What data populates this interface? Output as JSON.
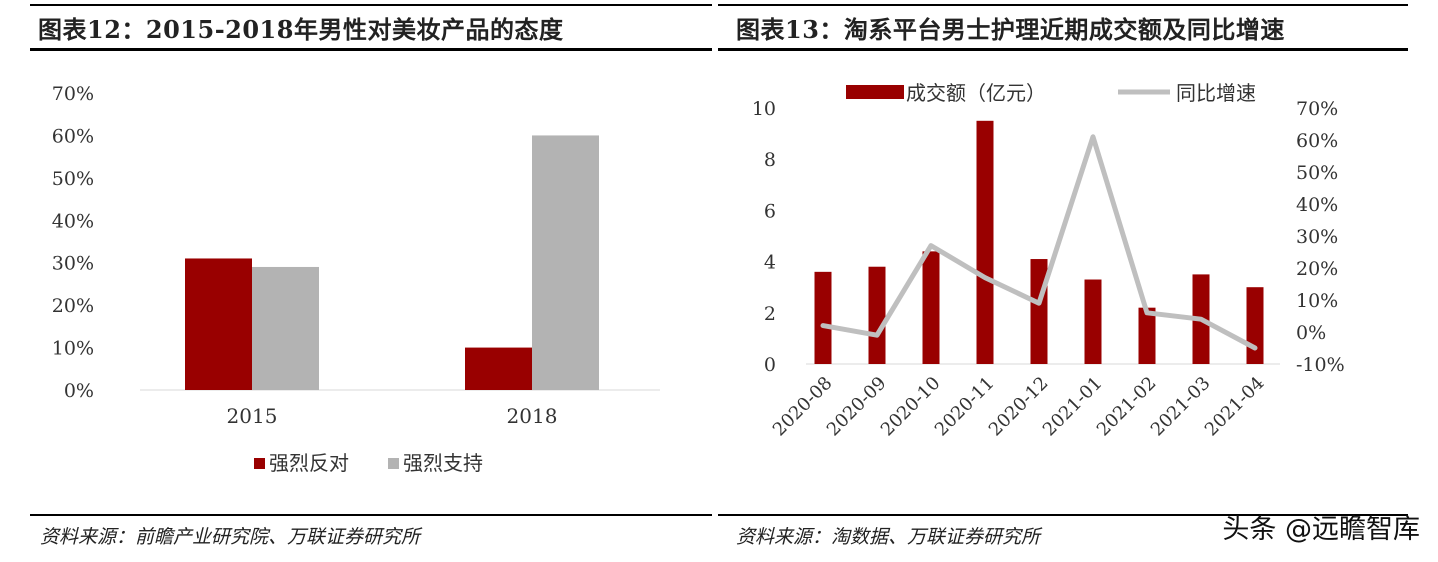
{
  "left": {
    "title": "图表12：2015-2018年男性对美妆产品的态度",
    "source": "资料来源：前瞻产业研究院、万联证券研究所",
    "chart_data": {
      "type": "bar",
      "categories": [
        "2015",
        "2018"
      ],
      "series": [
        {
          "name": "强烈反对",
          "values": [
            31,
            10
          ],
          "color": "#990000"
        },
        {
          "name": "强烈支持",
          "values": [
            29,
            60
          ],
          "color": "#b3b3b3"
        }
      ],
      "y_ticks": [
        "0%",
        "10%",
        "20%",
        "30%",
        "40%",
        "50%",
        "60%",
        "70%"
      ],
      "ylim": [
        0,
        70
      ],
      "legend_position": "bottom",
      "grid": false
    }
  },
  "right": {
    "title": "图表13：淘系平台男士护理近期成交额及同比增速",
    "source": "资料来源：淘数据、万联证券研究所",
    "chart_data": {
      "type": "bar+line",
      "categories": [
        "2020-08",
        "2020-09",
        "2020-10",
        "2020-11",
        "2020-12",
        "2021-01",
        "2021-02",
        "2021-03",
        "2021-04"
      ],
      "series": [
        {
          "name": "成交额（亿元）",
          "type": "bar",
          "axis": "left",
          "values": [
            3.6,
            3.8,
            4.4,
            9.5,
            4.1,
            3.3,
            2.2,
            3.5,
            3.0
          ],
          "color": "#990000"
        },
        {
          "name": "同比增速",
          "type": "line",
          "axis": "right",
          "values": [
            2,
            -1,
            27,
            17,
            9,
            61,
            6,
            4,
            -5
          ],
          "color": "#bfbfbf"
        }
      ],
      "left_ticks": [
        "0",
        "2",
        "4",
        "6",
        "8",
        "10"
      ],
      "left_ylim": [
        0,
        10
      ],
      "right_ticks": [
        "-10%",
        "0%",
        "10%",
        "20%",
        "30%",
        "40%",
        "50%",
        "60%",
        "70%"
      ],
      "right_ylim": [
        -10,
        70
      ],
      "legend_position": "top",
      "grid": false
    }
  },
  "watermark": {
    "platform": "头条",
    "handle": "@远瞻智库"
  }
}
